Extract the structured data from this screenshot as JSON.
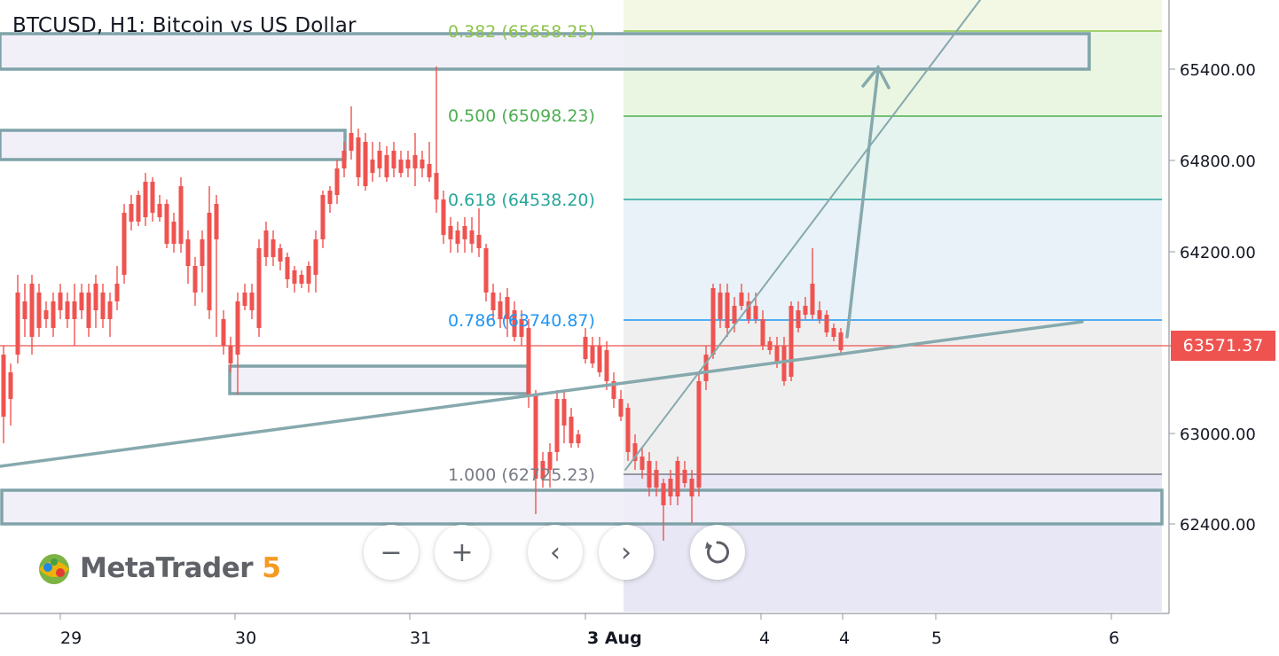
{
  "title": "BTCUSD, H1: Bitcoin vs US Dollar",
  "current_price": "63571.37",
  "price_axis": [
    "65400.00",
    "64800.00",
    "64200.00",
    "63000.00",
    "62400.00"
  ],
  "time_axis": [
    "29",
    "30",
    "31",
    "3 Aug",
    "4",
    "4",
    "5",
    "6"
  ],
  "fib_levels": [
    {
      "label": "0.382 (65658.25)",
      "color": "#8bc34a"
    },
    {
      "label": "0.500 (65098.23)",
      "color": "#4caf50"
    },
    {
      "label": "0.618 (64538.20)",
      "color": "#26a69a"
    },
    {
      "label": "0.786 (63740.87)",
      "color": "#2196f3"
    },
    {
      "label": "1.000 (62725.23)",
      "color": "#787b86"
    }
  ],
  "controls": {
    "zoom_out": "−",
    "zoom_in": "+",
    "scroll_left": "‹",
    "scroll_right": "›",
    "reset": "reset-icon"
  },
  "logo": {
    "name": "MetaTrader",
    "version": "5"
  },
  "colors": {
    "bull": "#26a69a",
    "bear": "#ef5350",
    "zone_stroke": "#7fa3a8",
    "trend": "#86a9ad"
  }
}
